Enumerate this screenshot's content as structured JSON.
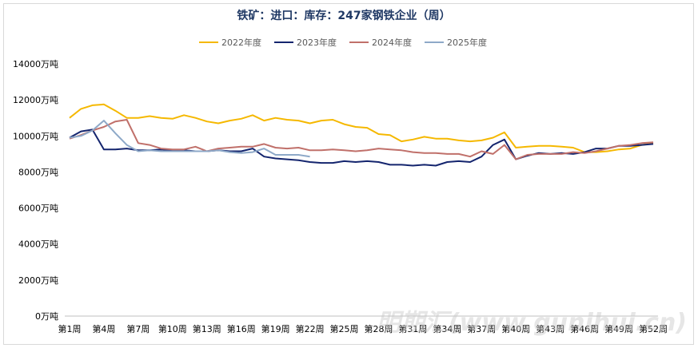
{
  "chart_data": {
    "type": "line",
    "title": "铁矿：进口：库存：247家钢铁企业（周）",
    "xlabel": "",
    "ylabel": "",
    "ylim": [
      0,
      14000
    ],
    "y_ticks": [
      0,
      2000,
      4000,
      6000,
      8000,
      10000,
      12000,
      14000
    ],
    "y_tick_labels": [
      "0万吨",
      "2000万吨",
      "4000万吨",
      "6000万吨",
      "8000万吨",
      "10000万吨",
      "12000万吨",
      "14000万吨"
    ],
    "x_tick_labels": [
      "第1周",
      "第4周",
      "第7周",
      "第10周",
      "第13周",
      "第16周",
      "第19周",
      "第22周",
      "第25周",
      "第28周",
      "第31周",
      "第34周",
      "第37周",
      "第40周",
      "第43周",
      "第46周",
      "第49周",
      "第52周"
    ],
    "x_tick_weeks": [
      1,
      4,
      7,
      10,
      13,
      16,
      19,
      22,
      25,
      28,
      31,
      34,
      37,
      40,
      43,
      46,
      49,
      52
    ],
    "grid": false,
    "legend_position": "top",
    "series": [
      {
        "name": "2022年度",
        "color": "#f5b800",
        "weeks": [
          1,
          2,
          3,
          4,
          5,
          6,
          7,
          8,
          9,
          10,
          11,
          12,
          13,
          14,
          15,
          16,
          17,
          18,
          19,
          20,
          21,
          22,
          23,
          24,
          25,
          26,
          27,
          28,
          29,
          30,
          31,
          32,
          33,
          34,
          35,
          36,
          37,
          38,
          39,
          40,
          41,
          42,
          43,
          44,
          45,
          46,
          47,
          48,
          49,
          50,
          51,
          52
        ],
        "values": [
          11000,
          11500,
          11700,
          11750,
          11400,
          11000,
          11000,
          11100,
          11000,
          10950,
          11150,
          11000,
          10800,
          10700,
          10850,
          10950,
          11150,
          10850,
          11000,
          10900,
          10850,
          10700,
          10850,
          10900,
          10650,
          10500,
          10450,
          10100,
          10050,
          9700,
          9800,
          9950,
          9850,
          9850,
          9750,
          9700,
          9750,
          9900,
          10200,
          9350,
          9400,
          9450,
          9450,
          9400,
          9350,
          9100,
          9100,
          9150,
          9250,
          9300,
          9500,
          9600
        ]
      },
      {
        "name": "2023年度",
        "color": "#14256e",
        "weeks": [
          1,
          2,
          3,
          4,
          5,
          6,
          7,
          8,
          9,
          10,
          11,
          12,
          13,
          14,
          15,
          16,
          17,
          18,
          19,
          20,
          21,
          22,
          23,
          24,
          25,
          26,
          27,
          28,
          29,
          30,
          31,
          32,
          33,
          34,
          35,
          36,
          37,
          38,
          39,
          40,
          41,
          42,
          43,
          44,
          45,
          46,
          47,
          48,
          49,
          50,
          51,
          52
        ],
        "values": [
          9900,
          10250,
          10350,
          9250,
          9250,
          9300,
          9200,
          9200,
          9250,
          9200,
          9200,
          9150,
          9150,
          9200,
          9150,
          9150,
          9300,
          8850,
          8750,
          8700,
          8650,
          8550,
          8500,
          8500,
          8600,
          8550,
          8600,
          8550,
          8400,
          8400,
          8350,
          8400,
          8350,
          8550,
          8600,
          8550,
          8850,
          9500,
          9800,
          8700,
          8900,
          9050,
          9000,
          9050,
          9000,
          9100,
          9300,
          9300,
          9450,
          9450,
          9500,
          9550
        ]
      },
      {
        "name": "2024年度",
        "color": "#c0706a",
        "weeks": [
          1,
          2,
          3,
          4,
          5,
          6,
          7,
          8,
          9,
          10,
          11,
          12,
          13,
          14,
          15,
          16,
          17,
          18,
          19,
          20,
          21,
          22,
          23,
          24,
          25,
          26,
          27,
          28,
          29,
          30,
          31,
          32,
          33,
          34,
          35,
          36,
          37,
          38,
          39,
          40,
          41,
          42,
          43,
          44,
          45,
          46,
          47,
          48,
          49,
          50,
          51,
          52
        ],
        "values": [
          9850,
          10050,
          10300,
          10500,
          10800,
          10900,
          9600,
          9500,
          9300,
          9250,
          9250,
          9400,
          9150,
          9300,
          9350,
          9400,
          9400,
          9550,
          9350,
          9300,
          9350,
          9200,
          9200,
          9250,
          9200,
          9150,
          9200,
          9300,
          9250,
          9200,
          9100,
          9050,
          9050,
          9000,
          9000,
          8850,
          9150,
          9000,
          9500,
          8700,
          8950,
          9000,
          9000,
          9000,
          9100,
          9050,
          9150,
          9300,
          9450,
          9500,
          9600,
          9650
        ]
      },
      {
        "name": "2025年度",
        "color": "#8ea9c8",
        "weeks": [
          1,
          2,
          3,
          4,
          5,
          6,
          7,
          8,
          9,
          10,
          11,
          12,
          13,
          14,
          15,
          16,
          17,
          18,
          19,
          20,
          21,
          22
        ],
        "values": [
          9900,
          10000,
          10300,
          10850,
          10150,
          9500,
          9150,
          9200,
          9150,
          9150,
          9150,
          9150,
          9150,
          9200,
          9100,
          9050,
          9100,
          9300,
          8950,
          8950,
          8950,
          8850
        ]
      }
    ]
  },
  "watermark": {
    "text": "明期汇(www.gunihui.cn)"
  }
}
